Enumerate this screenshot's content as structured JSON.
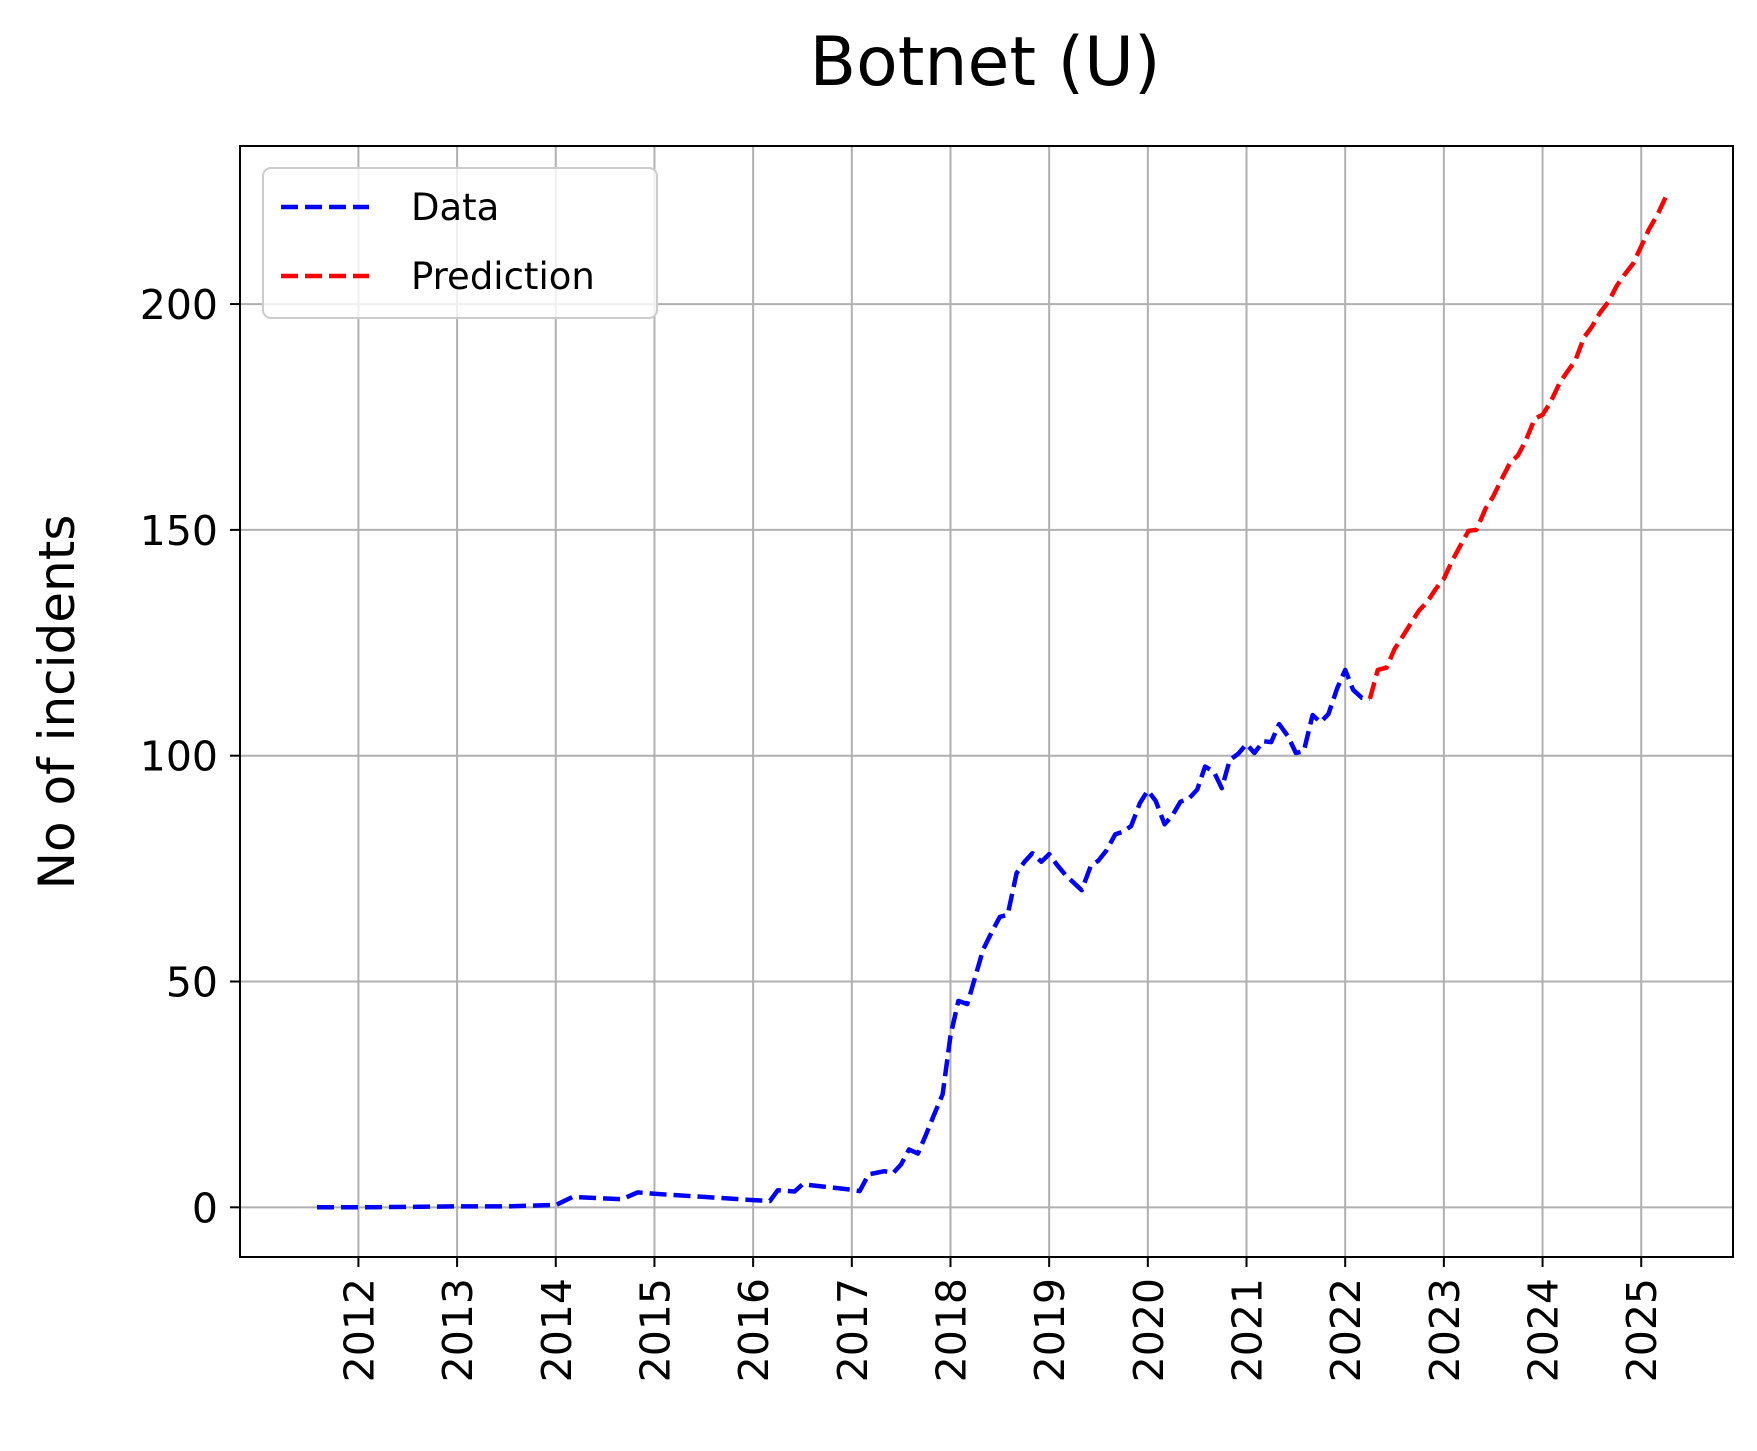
{
  "chart_data": {
    "type": "line",
    "title": "Botnet (U)",
    "xlabel": "",
    "ylabel": "No of incidents",
    "x_ticks": [
      "2012",
      "2013",
      "2014",
      "2015",
      "2016",
      "2017",
      "2018",
      "2019",
      "2020",
      "2021",
      "2022",
      "2023",
      "2024",
      "2025"
    ],
    "y_ticks": [
      "0",
      "50",
      "100",
      "150",
      "200"
    ],
    "xlim": [
      2010.8,
      2025.93
    ],
    "ylim": [
      -11,
      235
    ],
    "grid": true,
    "legend_position": "top-left",
    "series": [
      {
        "name": "Data",
        "color": "#0000ff",
        "style": "dashed",
        "points": [
          [
            2011.58,
            0
          ],
          [
            2012.0,
            0
          ],
          [
            2012.5,
            0.1
          ],
          [
            2013.0,
            0.2
          ],
          [
            2013.5,
            0.2
          ],
          [
            2013.93,
            0.5
          ],
          [
            2014.0,
            0.5
          ],
          [
            2014.17,
            2.3
          ],
          [
            2014.67,
            1.8
          ],
          [
            2014.83,
            3.3
          ],
          [
            2015.0,
            3.0
          ],
          [
            2015.5,
            2.3
          ],
          [
            2016.0,
            1.6
          ],
          [
            2016.08,
            1.5
          ],
          [
            2016.17,
            1.4
          ],
          [
            2016.25,
            3.8
          ],
          [
            2016.42,
            3.5
          ],
          [
            2016.5,
            5.1
          ],
          [
            2016.75,
            4.5
          ],
          [
            2017.0,
            3.9
          ],
          [
            2017.08,
            3.6
          ],
          [
            2017.17,
            7.3
          ],
          [
            2017.33,
            8.0
          ],
          [
            2017.42,
            7.6
          ],
          [
            2017.5,
            9.5
          ],
          [
            2017.58,
            12.8
          ],
          [
            2017.67,
            11.9
          ],
          [
            2017.75,
            16.0
          ],
          [
            2017.83,
            20.3
          ],
          [
            2017.92,
            25.0
          ],
          [
            2018.0,
            38.0
          ],
          [
            2018.08,
            45.7
          ],
          [
            2018.17,
            45.0
          ],
          [
            2018.25,
            51.0
          ],
          [
            2018.33,
            57.0
          ],
          [
            2018.42,
            61.0
          ],
          [
            2018.5,
            64.3
          ],
          [
            2018.58,
            64.8
          ],
          [
            2018.67,
            74.0
          ],
          [
            2018.75,
            76.5
          ],
          [
            2018.83,
            78.4
          ],
          [
            2018.92,
            76.5
          ],
          [
            2019.0,
            78.2
          ],
          [
            2019.08,
            75.8
          ],
          [
            2019.17,
            73.5
          ],
          [
            2019.33,
            70.2
          ],
          [
            2019.42,
            75.5
          ],
          [
            2019.5,
            76.8
          ],
          [
            2019.58,
            79.0
          ],
          [
            2019.67,
            82.6
          ],
          [
            2019.75,
            83.2
          ],
          [
            2019.83,
            84.4
          ],
          [
            2019.92,
            89.5
          ],
          [
            2020.0,
            92.3
          ],
          [
            2020.08,
            90.0
          ],
          [
            2020.17,
            84.8
          ],
          [
            2020.25,
            86.8
          ],
          [
            2020.33,
            89.8
          ],
          [
            2020.42,
            90.6
          ],
          [
            2020.5,
            92.5
          ],
          [
            2020.58,
            97.6
          ],
          [
            2020.67,
            96.4
          ],
          [
            2020.75,
            92.8
          ],
          [
            2020.83,
            99.0
          ],
          [
            2020.92,
            100.5
          ],
          [
            2021.0,
            102.6
          ],
          [
            2021.08,
            100.6
          ],
          [
            2021.17,
            103.2
          ],
          [
            2021.25,
            103.0
          ],
          [
            2021.33,
            107.0
          ],
          [
            2021.42,
            104.3
          ],
          [
            2021.5,
            100.6
          ],
          [
            2021.58,
            101.0
          ],
          [
            2021.67,
            109.0
          ],
          [
            2021.75,
            107.4
          ],
          [
            2021.83,
            109.2
          ],
          [
            2021.92,
            115.0
          ],
          [
            2022.0,
            119.0
          ],
          [
            2022.08,
            114.6
          ],
          [
            2022.17,
            112.8
          ],
          [
            2022.25,
            112.6
          ]
        ]
      },
      {
        "name": "Prediction",
        "color": "#ff0000",
        "style": "dashed",
        "points": [
          [
            2022.25,
            112.6
          ],
          [
            2022.33,
            119.0
          ],
          [
            2022.42,
            119.5
          ],
          [
            2022.5,
            123.6
          ],
          [
            2022.58,
            126.3
          ],
          [
            2022.67,
            129.5
          ],
          [
            2022.75,
            132.2
          ],
          [
            2022.83,
            134.0
          ],
          [
            2022.92,
            137.0
          ],
          [
            2023.0,
            139.2
          ],
          [
            2023.08,
            143.0
          ],
          [
            2023.17,
            146.6
          ],
          [
            2023.25,
            149.8
          ],
          [
            2023.33,
            150.0
          ],
          [
            2023.42,
            154.6
          ],
          [
            2023.5,
            157.4
          ],
          [
            2023.58,
            161.0
          ],
          [
            2023.67,
            164.8
          ],
          [
            2023.75,
            166.5
          ],
          [
            2023.83,
            169.8
          ],
          [
            2023.92,
            174.6
          ],
          [
            2024.0,
            175.5
          ],
          [
            2024.08,
            178.2
          ],
          [
            2024.17,
            182.4
          ],
          [
            2024.25,
            185.0
          ],
          [
            2024.33,
            187.4
          ],
          [
            2024.42,
            192.6
          ],
          [
            2024.5,
            195.0
          ],
          [
            2024.58,
            198.0
          ],
          [
            2024.67,
            200.6
          ],
          [
            2024.75,
            204.0
          ],
          [
            2024.83,
            206.5
          ],
          [
            2024.92,
            209.0
          ],
          [
            2025.0,
            212.8
          ],
          [
            2025.08,
            216.6
          ],
          [
            2025.17,
            220.0
          ],
          [
            2025.25,
            223.8
          ]
        ]
      }
    ]
  }
}
